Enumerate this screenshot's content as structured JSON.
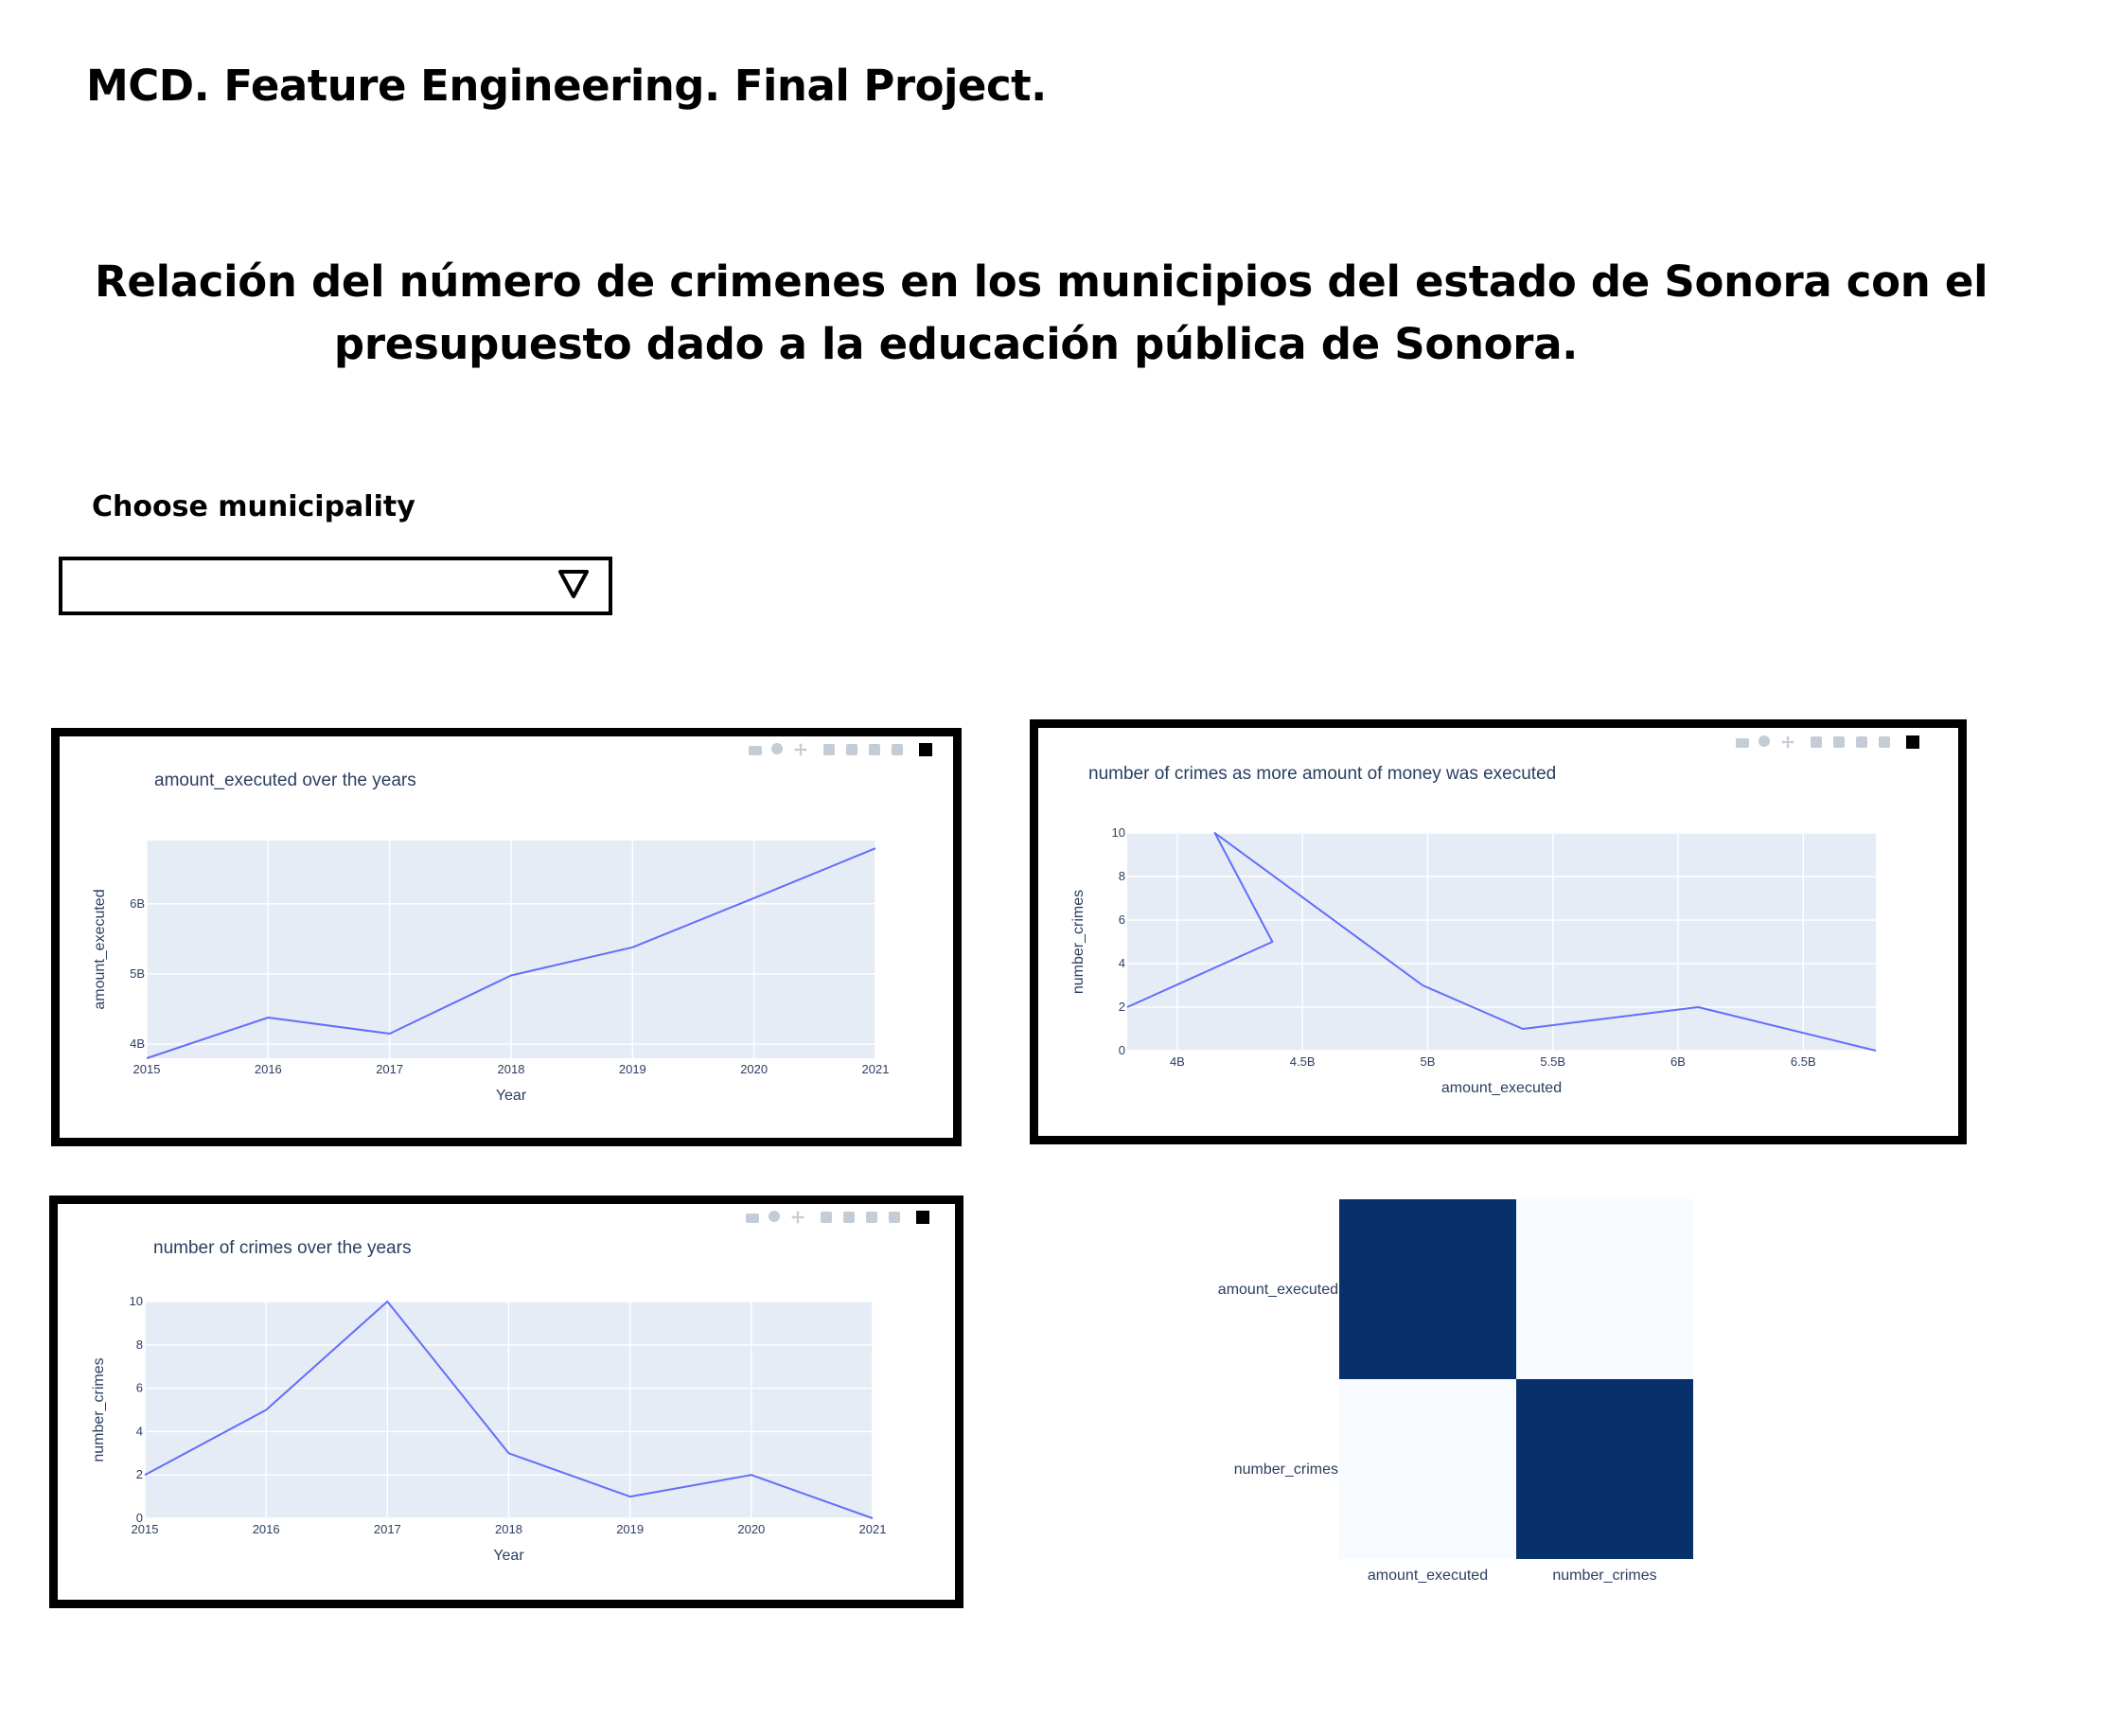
{
  "header": {
    "title": "MCD. Feature Engineering. Final Project.",
    "heading_line1": "Relación del número de crimenes en los municipios del estado de Sonora con el",
    "heading_line2": "presupuesto dado a la educación pública de Sonora."
  },
  "filter": {
    "label": "Choose municipality",
    "selected_value": ""
  },
  "colors": {
    "trace": "#636efa",
    "plot_background": "#e5ecf6",
    "text": "#2a3f5f",
    "heatmap_high": "#08306b",
    "heatmap_low": "#f7fbff"
  },
  "modebar_icons": [
    "camera-icon",
    "zoom-icon",
    "pan-icon",
    "zoom-in-icon",
    "zoom-out-icon",
    "autoscale-icon",
    "reset-axes-icon",
    "plotly-logo-icon"
  ],
  "chart_data": [
    {
      "id": "amount-chart",
      "type": "line",
      "title": "amount_executed over the years",
      "xlabel": "Year",
      "ylabel": "amount_executed",
      "x": [
        2015,
        2016,
        2017,
        2018,
        2019,
        2020,
        2021
      ],
      "y": [
        3800000000,
        4380000000,
        4150000000,
        4980000000,
        5380000000,
        6080000000,
        6790000000
      ],
      "xlim": [
        2015,
        2021
      ],
      "ylim": [
        3800000000,
        6900000000
      ],
      "xticks": [
        2015,
        2016,
        2017,
        2018,
        2019,
        2020,
        2021
      ],
      "xtick_labels": [
        "2015",
        "2016",
        "2017",
        "2018",
        "2019",
        "2020",
        "2021"
      ],
      "yticks": [
        4000000000,
        5000000000,
        6000000000
      ],
      "ytick_labels": [
        "4B",
        "5B",
        "6B"
      ],
      "grid": true
    },
    {
      "id": "scatter-chart",
      "type": "line",
      "title": "number of crimes as more amount of money was executed",
      "xlabel": "amount_executed",
      "ylabel": "number_crimes",
      "x": [
        3800000000,
        4380000000,
        4150000000,
        4980000000,
        5380000000,
        6080000000,
        6790000000
      ],
      "y": [
        2,
        5,
        10,
        3,
        1,
        2,
        0
      ],
      "xlim": [
        3800000000,
        6790000000
      ],
      "ylim": [
        0,
        10
      ],
      "xticks": [
        4000000000,
        4500000000,
        5000000000,
        5500000000,
        6000000000,
        6500000000
      ],
      "xtick_labels": [
        "4B",
        "4.5B",
        "5B",
        "5.5B",
        "6B",
        "6.5B"
      ],
      "yticks": [
        0,
        2,
        4,
        6,
        8,
        10
      ],
      "ytick_labels": [
        "0",
        "2",
        "4",
        "6",
        "8",
        "10"
      ],
      "grid": true
    },
    {
      "id": "crimes-chart",
      "type": "line",
      "title": "number of crimes over the years",
      "xlabel": "Year",
      "ylabel": "number_crimes",
      "x": [
        2015,
        2016,
        2017,
        2018,
        2019,
        2020,
        2021
      ],
      "y": [
        2,
        5,
        10,
        3,
        1,
        2,
        0
      ],
      "xlim": [
        2015,
        2021
      ],
      "ylim": [
        0,
        10
      ],
      "xticks": [
        2015,
        2016,
        2017,
        2018,
        2019,
        2020,
        2021
      ],
      "xtick_labels": [
        "2015",
        "2016",
        "2017",
        "2018",
        "2019",
        "2020",
        "2021"
      ],
      "yticks": [
        0,
        2,
        4,
        6,
        8,
        10
      ],
      "ytick_labels": [
        "0",
        "2",
        "4",
        "6",
        "8",
        "10"
      ],
      "grid": true
    },
    {
      "id": "heatmap",
      "type": "heatmap",
      "x_labels": [
        "amount_executed",
        "number_crimes"
      ],
      "y_labels": [
        "amount_executed",
        "number_crimes"
      ],
      "values": [
        [
          1,
          0
        ],
        [
          0,
          1
        ]
      ]
    }
  ]
}
